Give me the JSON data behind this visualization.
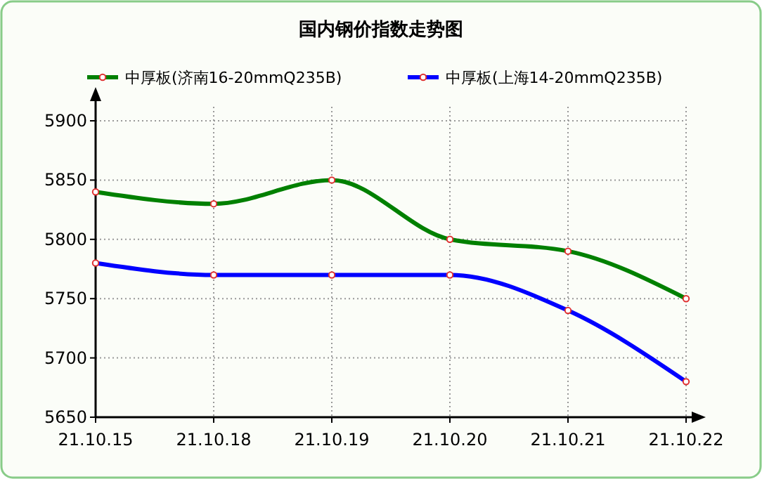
{
  "chart_data": {
    "type": "line",
    "title": "国内钢价指数走势图",
    "categories": [
      "21.10.15",
      "21.10.18",
      "21.10.19",
      "21.10.20",
      "21.10.21",
      "21.10.22"
    ],
    "series": [
      {
        "name": "中厚板(济南16-20mmQ235B)",
        "color": "#008000",
        "values": [
          5840,
          5830,
          5850,
          5800,
          5790,
          5750
        ]
      },
      {
        "name": "中厚板(上海14-20mmQ235B)",
        "color": "#0000ff",
        "values": [
          5780,
          5770,
          5770,
          5770,
          5740,
          5680
        ]
      }
    ],
    "ylim": [
      5650,
      5900
    ],
    "yticks": [
      5650,
      5700,
      5750,
      5800,
      5850,
      5900
    ],
    "grid": true,
    "legend": "top",
    "marker": "circle"
  }
}
